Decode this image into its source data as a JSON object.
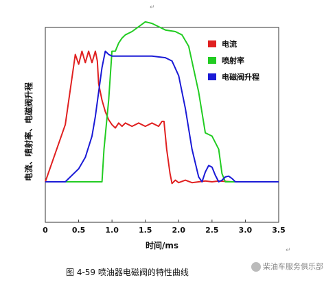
{
  "chart_data": {
    "type": "line",
    "title": "",
    "xlabel": "时间/ms",
    "ylabel": "电流、喷射率、电磁阀升程",
    "xlim": [
      0,
      3.5
    ],
    "x_ticks": [
      "0",
      "0.5",
      "1.0",
      "1.5",
      "2.0",
      "2.5",
      "3.0",
      "3.5"
    ],
    "grid": false,
    "legend_position": "top-right",
    "series": [
      {
        "name": "电流",
        "color": "#e02020",
        "x": [
          0,
          0.3,
          0.45,
          0.5,
          0.55,
          0.6,
          0.65,
          0.7,
          0.75,
          0.78,
          0.8,
          0.85,
          0.9,
          0.95,
          1.0,
          1.05,
          1.1,
          1.15,
          1.2,
          1.3,
          1.4,
          1.5,
          1.6,
          1.7,
          1.75,
          1.78,
          1.82,
          1.87,
          1.9,
          1.95,
          2.0,
          2.1,
          2.2,
          2.3,
          2.4,
          2.5,
          2.6,
          2.8,
          3.0,
          3.5
        ],
        "y": [
          0,
          0.35,
          0.78,
          0.72,
          0.8,
          0.73,
          0.8,
          0.73,
          0.8,
          0.74,
          0.6,
          0.5,
          0.43,
          0.38,
          0.35,
          0.33,
          0.36,
          0.34,
          0.36,
          0.34,
          0.36,
          0.34,
          0.36,
          0.34,
          0.37,
          0.37,
          0.2,
          0.05,
          -0.01,
          0.01,
          -0.005,
          0.01,
          -0.005,
          0.0,
          0.005,
          0.0,
          0.005,
          0.0,
          0.0,
          0.0
        ]
      },
      {
        "name": "喷射率",
        "color": "#22cc22",
        "x": [
          0,
          0.85,
          0.88,
          0.95,
          1.0,
          1.05,
          1.1,
          1.15,
          1.2,
          1.3,
          1.4,
          1.5,
          1.6,
          1.7,
          1.8,
          1.95,
          2.05,
          2.15,
          2.3,
          2.4,
          2.5,
          2.6,
          2.65,
          2.7,
          3.5
        ],
        "y": [
          0,
          0,
          0.2,
          0.5,
          0.8,
          0.8,
          0.85,
          0.88,
          0.9,
          0.92,
          0.95,
          0.98,
          0.97,
          0.95,
          0.93,
          0.92,
          0.9,
          0.83,
          0.55,
          0.3,
          0.28,
          0.2,
          0.05,
          0,
          0
        ]
      },
      {
        "name": "电磁阀升程",
        "color": "#1a1ad6",
        "x": [
          0,
          0.3,
          0.5,
          0.6,
          0.7,
          0.75,
          0.8,
          0.85,
          0.9,
          0.95,
          1.0,
          1.1,
          1.4,
          1.6,
          1.8,
          1.9,
          2.0,
          2.1,
          2.2,
          2.3,
          2.35,
          2.4,
          2.45,
          2.5,
          2.55,
          2.6,
          2.65,
          2.7,
          2.75,
          2.8,
          2.85,
          2.9,
          3.0,
          3.5
        ],
        "y": [
          0,
          0,
          0.08,
          0.15,
          0.28,
          0.4,
          0.55,
          0.7,
          0.8,
          0.78,
          0.77,
          0.77,
          0.77,
          0.77,
          0.76,
          0.74,
          0.65,
          0.45,
          0.2,
          0.03,
          0.0,
          0.06,
          0.1,
          0.09,
          0.04,
          0.0,
          0.01,
          0.03,
          0.035,
          0.02,
          0.0,
          0.0,
          0.0,
          0.0
        ]
      }
    ]
  },
  "caption": "图 4-59  喷油器电磁阀的特性曲线",
  "watermark": "柴油车服务俱乐部"
}
